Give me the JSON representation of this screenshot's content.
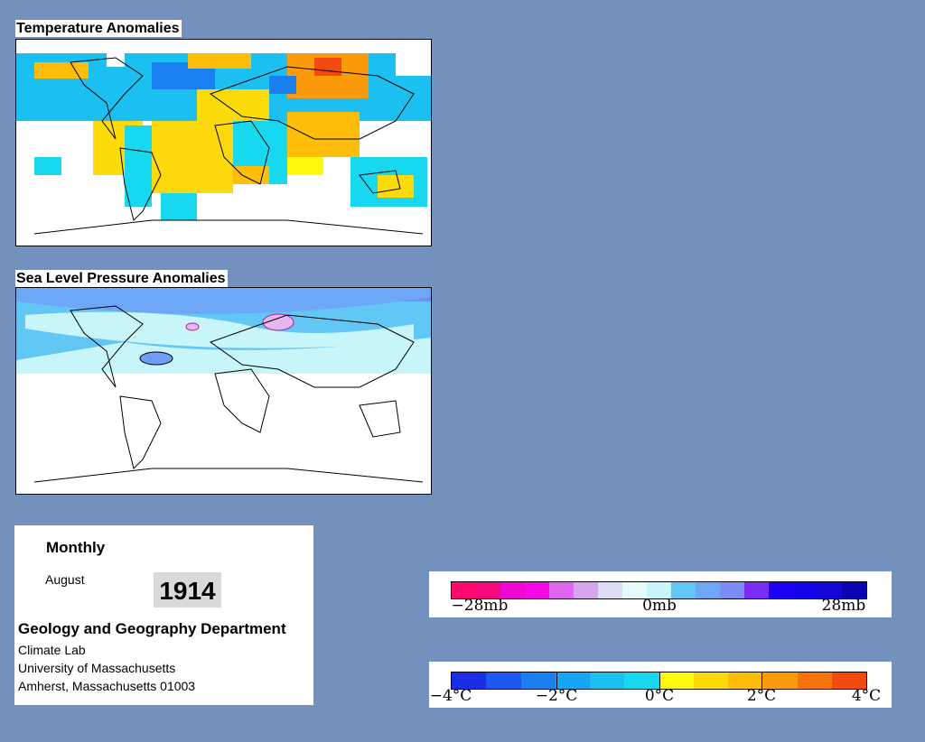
{
  "maps": {
    "temperature_title": "Temperature Anomalies",
    "pressure_title": "Sea Level Pressure Anomalies"
  },
  "info": {
    "period": "Monthly",
    "month": "August",
    "year": "1914",
    "department": "Geology and Geography Department",
    "lab": "Climate Lab",
    "university": "University of Massachusetts",
    "address": "Amherst, Massachusetts 01003"
  },
  "pressure_legend": {
    "labels": [
      "−28mb",
      "0mb",
      "28mb"
    ],
    "colors": [
      "#ff0a6e",
      "#f5097e",
      "#ee08d0",
      "#f50ae5",
      "#df66ee",
      "#d7a4ee",
      "#dcdcf5",
      "#e6fafa",
      "#c8f5f9",
      "#63c7f5",
      "#6ea7f5",
      "#7c8bf5",
      "#7a2cf5",
      "#1e00f5",
      "#1205e8",
      "#1207d6",
      "#0a05b4"
    ]
  },
  "temperature_legend": {
    "labels": [
      "−4°C",
      "−2°C",
      "0°C",
      "2°C",
      "4°C"
    ],
    "colors": [
      "#1a2ee8",
      "#1b57f0",
      "#1a80f2",
      "#16a6f5",
      "#1bbff0",
      "#17d8ef",
      "#fdf80d",
      "#fddb0a",
      "#fdbd09",
      "#fb9b0c",
      "#f8740b",
      "#f24a10"
    ]
  }
}
